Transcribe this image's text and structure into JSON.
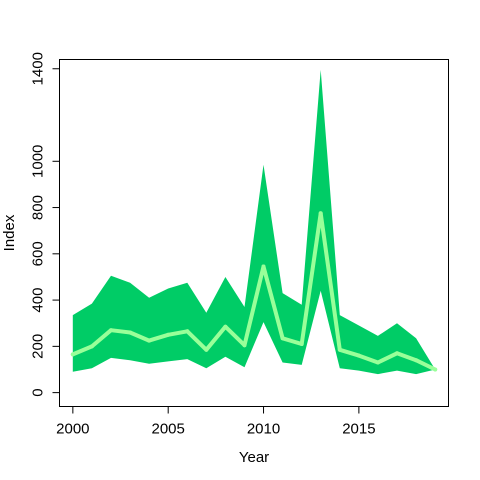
{
  "chart_data": {
    "type": "area",
    "title": "",
    "xlabel": "Year",
    "ylabel": "Index",
    "xlim": [
      1999.3,
      2019.7
    ],
    "ylim": [
      -60,
      1440
    ],
    "x_ticks": [
      2000,
      2005,
      2010,
      2015
    ],
    "y_ticks": [
      0,
      200,
      400,
      600,
      800,
      1000,
      1400
    ],
    "grid": false,
    "legend": "none",
    "x": [
      2000,
      2001,
      2002,
      2003,
      2004,
      2005,
      2006,
      2007,
      2008,
      2009,
      2010,
      2011,
      2012,
      2013,
      2014,
      2015,
      2016,
      2017,
      2018,
      2019
    ],
    "series": [
      {
        "role": "upper",
        "values": [
          335,
          385,
          505,
          475,
          410,
          450,
          475,
          345,
          500,
          370,
          985,
          430,
          380,
          1395,
          335,
          290,
          245,
          300,
          235,
          100
        ]
      },
      {
        "role": "lower",
        "values": [
          90,
          105,
          150,
          140,
          125,
          135,
          145,
          105,
          155,
          110,
          305,
          130,
          120,
          440,
          105,
          95,
          80,
          95,
          80,
          100
        ]
      },
      {
        "role": "center",
        "values": [
          165,
          200,
          270,
          260,
          225,
          250,
          265,
          185,
          285,
          205,
          545,
          235,
          210,
          775,
          185,
          160,
          130,
          170,
          140,
          100
        ]
      }
    ],
    "colors": {
      "band": "#00cc66",
      "line": "#99ff99"
    }
  }
}
